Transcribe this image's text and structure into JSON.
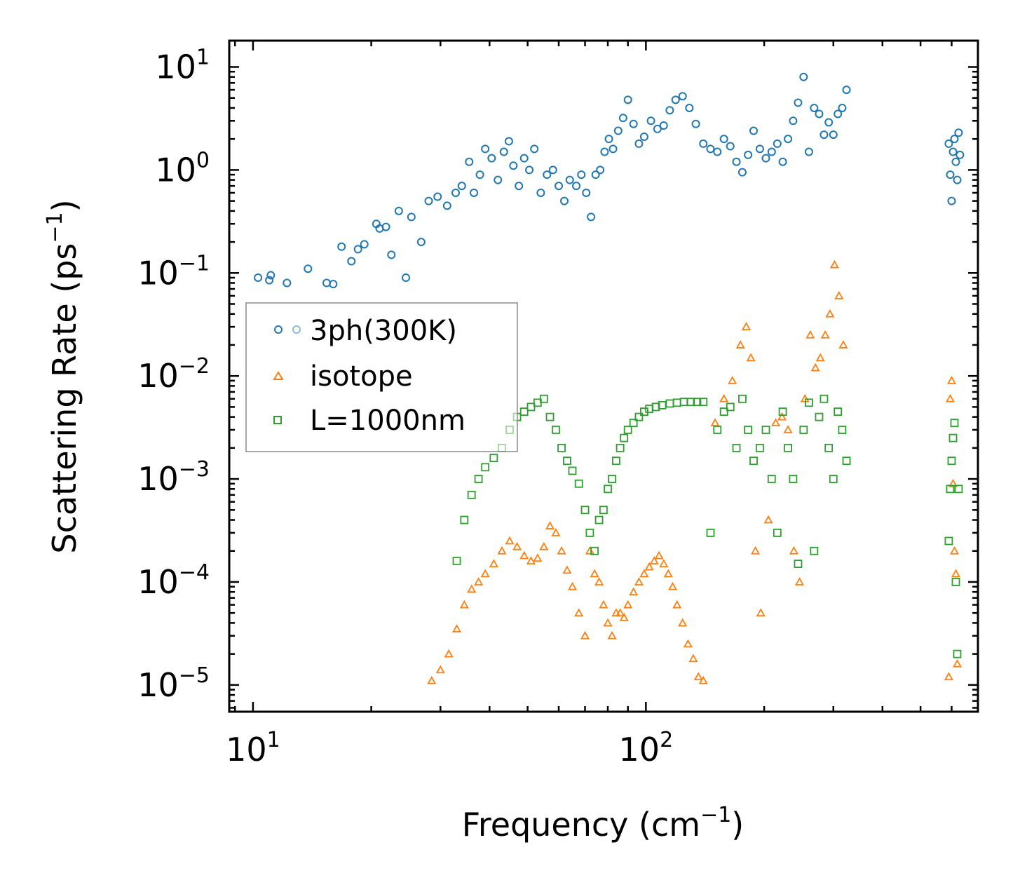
{
  "chart_data": {
    "type": "scatter",
    "xscale": "log",
    "yscale": "log",
    "xlabel": "Frequency (cm",
    "xlabel_sup": "−1",
    "xlabel_end": ")",
    "ylabel": "Scattering Rate (ps",
    "ylabel_sup": "−1",
    "ylabel_end": ")",
    "xlim": [
      8.7,
      700
    ],
    "ylim": [
      5.5e-06,
      18
    ],
    "xticks": [
      {
        "value": 10,
        "base": "10",
        "exp": "1"
      },
      {
        "value": 100,
        "base": "10",
        "exp": "2"
      }
    ],
    "yticks": [
      {
        "value": 10,
        "base": "10",
        "exp": "1"
      },
      {
        "value": 1,
        "base": "10",
        "exp": "0"
      },
      {
        "value": 0.1,
        "base": "10",
        "exp": "−1"
      },
      {
        "value": 0.01,
        "base": "10",
        "exp": "−2"
      },
      {
        "value": 0.001,
        "base": "10",
        "exp": "−3"
      },
      {
        "value": 0.0001,
        "base": "10",
        "exp": "−4"
      },
      {
        "value": 1e-05,
        "base": "10",
        "exp": "−5"
      }
    ],
    "legend_position": "center-left",
    "series": [
      {
        "name": "3ph(300K)",
        "marker": "circle",
        "color": "#1f77b4",
        "x": [
          10.3,
          11.0,
          11.1,
          12.2,
          13.8,
          15.4,
          16.0,
          16.8,
          17.8,
          18.5,
          19.2,
          20.6,
          21.0,
          21.8,
          22.5,
          23.5,
          24.5,
          25.3,
          26.8,
          28.0,
          29.5,
          31.2,
          32.8,
          34.0,
          35.5,
          36.5,
          37.8,
          39.0,
          40.5,
          42.0,
          43.5,
          44.8,
          46.0,
          47.5,
          49.0,
          50.5,
          52.0,
          54.0,
          56.0,
          58.0,
          60.0,
          62.0,
          64.0,
          66.5,
          68.5,
          70.5,
          72.5,
          74.5,
          76.5,
          78.5,
          80.5,
          82.5,
          85.0,
          87.5,
          90.0,
          93.0,
          96.0,
          99.0,
          103.0,
          107.0,
          111.0,
          115.0,
          119.0,
          124.0,
          129.0,
          134.0,
          140.0,
          146.0,
          152.0,
          158.0,
          164.0,
          170.0,
          176.0,
          182.0,
          188.0,
          195.0,
          202.0,
          209.0,
          216.0,
          223.0,
          230.0,
          237.0,
          244.0,
          252.0,
          260.0,
          268.0,
          276.0,
          284.0,
          292.0,
          300.0,
          308.0,
          316.0,
          324.0,
          590.0,
          595.0,
          600.0,
          605.0,
          610.0,
          615.0,
          620.0,
          625.0,
          630.0
        ],
        "y": [
          0.09,
          0.085,
          0.095,
          0.08,
          0.11,
          0.08,
          0.078,
          0.18,
          0.13,
          0.17,
          0.19,
          0.3,
          0.27,
          0.28,
          0.15,
          0.4,
          0.09,
          0.35,
          0.2,
          0.5,
          0.55,
          0.45,
          0.6,
          0.7,
          1.2,
          0.6,
          0.9,
          1.6,
          1.3,
          0.8,
          1.5,
          1.9,
          1.1,
          0.7,
          1.3,
          1.0,
          1.6,
          0.6,
          0.9,
          1.0,
          0.7,
          0.5,
          0.8,
          0.7,
          0.9,
          0.6,
          0.35,
          0.9,
          1.0,
          1.5,
          2.0,
          1.6,
          2.4,
          3.2,
          4.8,
          2.8,
          1.8,
          2.1,
          3.0,
          2.5,
          2.7,
          3.8,
          4.8,
          5.2,
          4.0,
          2.8,
          1.8,
          1.6,
          1.5,
          2.0,
          1.7,
          1.2,
          0.95,
          1.4,
          2.4,
          1.6,
          1.3,
          1.5,
          1.8,
          1.2,
          2.0,
          3.0,
          4.5,
          8.0,
          1.5,
          4.0,
          3.5,
          2.2,
          2.9,
          2.2,
          3.5,
          4.0,
          6.0,
          1.8,
          0.9,
          0.5,
          1.5,
          2.0,
          1.2,
          0.8,
          2.3,
          1.4
        ],
        "legend_color": "#1f77b4"
      },
      {
        "name": "isotope",
        "marker": "triangle",
        "color": "#ff7f0e",
        "x": [
          28.5,
          30.0,
          31.5,
          33.0,
          34.5,
          36.0,
          37.5,
          39.0,
          41.0,
          43.0,
          45.0,
          47.0,
          49.0,
          51.0,
          53.0,
          55.0,
          57.0,
          59.0,
          61.0,
          63.0,
          65.0,
          67.5,
          70.0,
          72.0,
          74.0,
          76.0,
          78.0,
          80.0,
          82.0,
          84.0,
          86.0,
          88.0,
          90.0,
          93.0,
          96.0,
          99.0,
          102.0,
          105.0,
          108.0,
          111.0,
          114.0,
          117.0,
          120.0,
          124.0,
          128.0,
          132.0,
          136.0,
          140.0,
          150.0,
          158.0,
          166.0,
          174.0,
          180.0,
          185.0,
          190.0,
          196.0,
          205.0,
          214.0,
          222.0,
          230.0,
          238.0,
          246.0,
          254.0,
          262.0,
          270.0,
          278.0,
          286.0,
          294.0,
          302.0,
          310.0,
          318.0,
          590.0,
          595.0,
          600.0,
          605.0,
          610.0,
          615.0,
          620.0
        ],
        "y": [
          1.1e-05,
          1.4e-05,
          2e-05,
          3.5e-05,
          6e-05,
          8.5e-05,
          0.0001,
          0.00012,
          0.00015,
          0.0002,
          0.00025,
          0.00022,
          0.00018,
          0.00016,
          0.00017,
          0.00022,
          0.00035,
          0.0003,
          0.0002,
          0.00013,
          9e-05,
          5e-05,
          3e-05,
          0.0002,
          0.00012,
          0.0001,
          6e-05,
          4e-05,
          3e-05,
          5e-05,
          5e-05,
          4.5e-05,
          6e-05,
          8e-05,
          0.0001,
          0.00012,
          0.00014,
          0.00016,
          0.00018,
          0.00015,
          0.00012,
          9e-05,
          6e-05,
          4e-05,
          2.5e-05,
          1.8e-05,
          1.2e-05,
          1.1e-05,
          0.0035,
          0.006,
          0.009,
          0.02,
          0.03,
          0.015,
          0.0002,
          5e-05,
          0.0004,
          0.0035,
          0.004,
          0.003,
          0.0002,
          0.0001,
          0.006,
          0.025,
          0.012,
          0.015,
          0.025,
          0.04,
          0.12,
          0.06,
          0.02,
          1.2e-05,
          0.006,
          0.009,
          0.0009,
          0.0002,
          0.00012,
          1.6e-05
        ],
        "legend_color": "#ff7f0e"
      },
      {
        "name": "L=1000nm",
        "marker": "square",
        "color": "#2ca02c",
        "x": [
          33.0,
          34.5,
          36.0,
          37.5,
          39.0,
          41.0,
          43.0,
          45.0,
          47.0,
          49.0,
          51.0,
          53.0,
          55.0,
          57.0,
          59.0,
          61.0,
          63.0,
          65.0,
          67.5,
          70.0,
          72.0,
          74.0,
          76.0,
          78.0,
          80.0,
          82.0,
          84.0,
          86.0,
          88.0,
          90.0,
          93.0,
          96.0,
          99.0,
          102.0,
          106.0,
          110.0,
          115.0,
          120.0,
          125.0,
          130.0,
          135.0,
          140.0,
          146.0,
          152.0,
          158.0,
          164.0,
          170.0,
          176.0,
          182.0,
          188.0,
          195.0,
          202.0,
          209.0,
          216.0,
          223.0,
          230.0,
          237.0,
          244.0,
          252.0,
          260.0,
          268.0,
          276.0,
          284.0,
          292.0,
          300.0,
          308.0,
          316.0,
          324.0,
          590.0,
          595.0,
          600.0,
          605.0,
          610.0,
          615.0,
          620.0,
          625.0
        ],
        "y": [
          0.00016,
          0.0004,
          0.0007,
          0.001,
          0.0013,
          0.0016,
          0.002,
          0.003,
          0.004,
          0.0045,
          0.005,
          0.0055,
          0.006,
          0.004,
          0.003,
          0.002,
          0.0015,
          0.0012,
          0.0009,
          0.0005,
          0.0003,
          0.0002,
          0.0004,
          0.0005,
          0.0008,
          0.001,
          0.0015,
          0.002,
          0.0025,
          0.003,
          0.0035,
          0.004,
          0.0045,
          0.0048,
          0.005,
          0.0052,
          0.0054,
          0.0055,
          0.0056,
          0.0056,
          0.0056,
          0.0056,
          0.0003,
          0.003,
          0.0045,
          0.005,
          0.002,
          0.006,
          0.003,
          0.0015,
          0.002,
          0.003,
          0.001,
          0.0003,
          0.0045,
          0.002,
          0.001,
          0.00015,
          0.003,
          0.0055,
          0.0002,
          0.004,
          0.006,
          0.002,
          0.001,
          0.0045,
          0.003,
          0.0015,
          0.00025,
          0.0008,
          0.0015,
          0.0025,
          0.0035,
          0.0001,
          2e-05,
          0.0008
        ],
        "legend_color": "#2ca02c"
      }
    ],
    "legend_extra": {
      "circle_light_color": "#8fb8db",
      "square_light_color": "#8ccc8c",
      "triangle_y_hint": "",
      "legend_panel_x": [
        10.4,
        14.2
      ],
      "legend_panel_y": [
        0.033,
        0.0018
      ]
    }
  }
}
